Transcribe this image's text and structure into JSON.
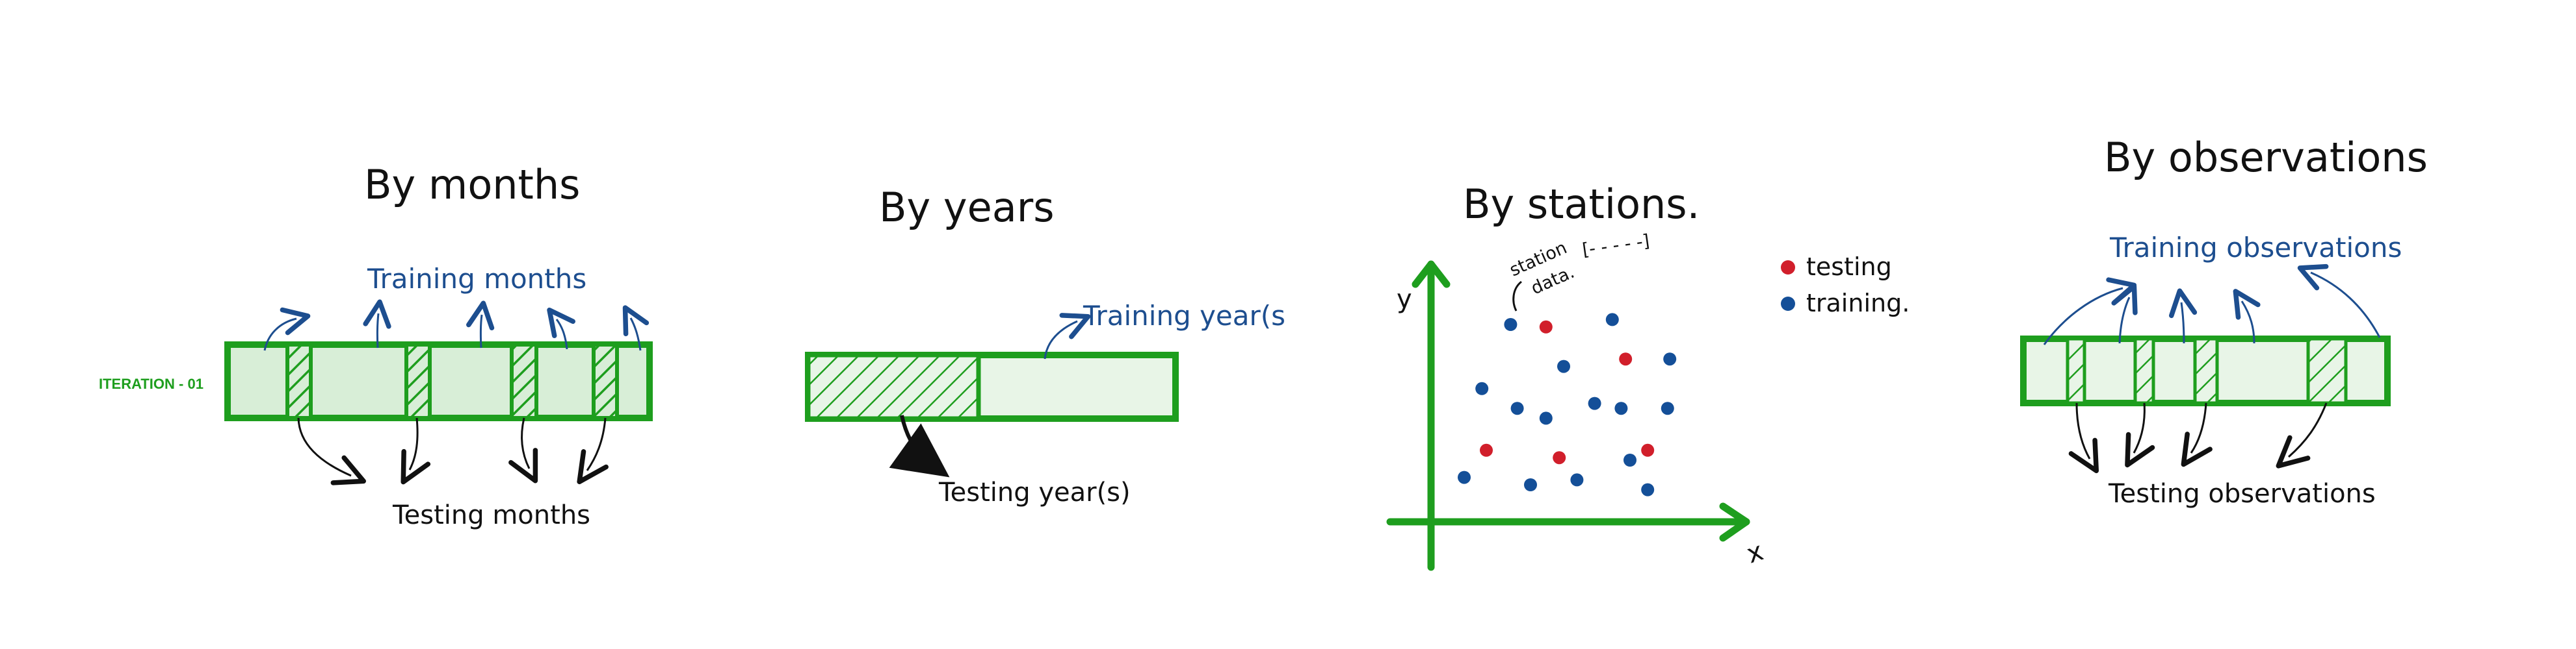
{
  "colors": {
    "green_stroke": "#1e9e1e",
    "green_fill": "#d8eed7",
    "green_fill_light": "#e8f5e7",
    "blue_text": "#1d4e8f",
    "red_point": "#d11f2b",
    "blue_point": "#144f98",
    "black": "#111111"
  },
  "panels": {
    "by_months": {
      "title": "By months",
      "training_label": "Training months",
      "testing_label": "Testing months",
      "iteration_label": "ITERATION - 01"
    },
    "by_years": {
      "title": "By years",
      "training_label": "Training year(s",
      "testing_label": "Testing year(s)"
    },
    "by_stations": {
      "title": "By stations.",
      "station_note": [
        "station",
        "data."
      ],
      "station_box_label": "[- - - - -]",
      "y_axis_label": "y",
      "x_axis_label": "x",
      "legend": [
        {
          "name": "testing",
          "color": "#d11f2b"
        },
        {
          "name": "training.",
          "color": "#144f98"
        }
      ],
      "points": [
        {
          "x": 0.36,
          "y": 0.8,
          "kind": "training"
        },
        {
          "x": 0.52,
          "y": 0.79,
          "kind": "testing"
        },
        {
          "x": 0.82,
          "y": 0.82,
          "kind": "training"
        },
        {
          "x": 0.6,
          "y": 0.63,
          "kind": "training"
        },
        {
          "x": 0.88,
          "y": 0.66,
          "kind": "testing"
        },
        {
          "x": 1.08,
          "y": 0.66,
          "kind": "training"
        },
        {
          "x": 0.23,
          "y": 0.54,
          "kind": "training"
        },
        {
          "x": 0.39,
          "y": 0.46,
          "kind": "training"
        },
        {
          "x": 0.52,
          "y": 0.42,
          "kind": "training"
        },
        {
          "x": 0.74,
          "y": 0.48,
          "kind": "training"
        },
        {
          "x": 0.86,
          "y": 0.46,
          "kind": "training"
        },
        {
          "x": 1.07,
          "y": 0.46,
          "kind": "training"
        },
        {
          "x": 0.25,
          "y": 0.29,
          "kind": "testing"
        },
        {
          "x": 0.58,
          "y": 0.26,
          "kind": "testing"
        },
        {
          "x": 0.9,
          "y": 0.25,
          "kind": "training"
        },
        {
          "x": 0.98,
          "y": 0.29,
          "kind": "testing"
        },
        {
          "x": 0.15,
          "y": 0.18,
          "kind": "training"
        },
        {
          "x": 0.45,
          "y": 0.15,
          "kind": "training"
        },
        {
          "x": 0.66,
          "y": 0.17,
          "kind": "training"
        },
        {
          "x": 0.98,
          "y": 0.13,
          "kind": "training"
        }
      ]
    },
    "by_observations": {
      "title": "By observations",
      "training_label": "Training observations",
      "testing_label": "Testing observations"
    }
  }
}
